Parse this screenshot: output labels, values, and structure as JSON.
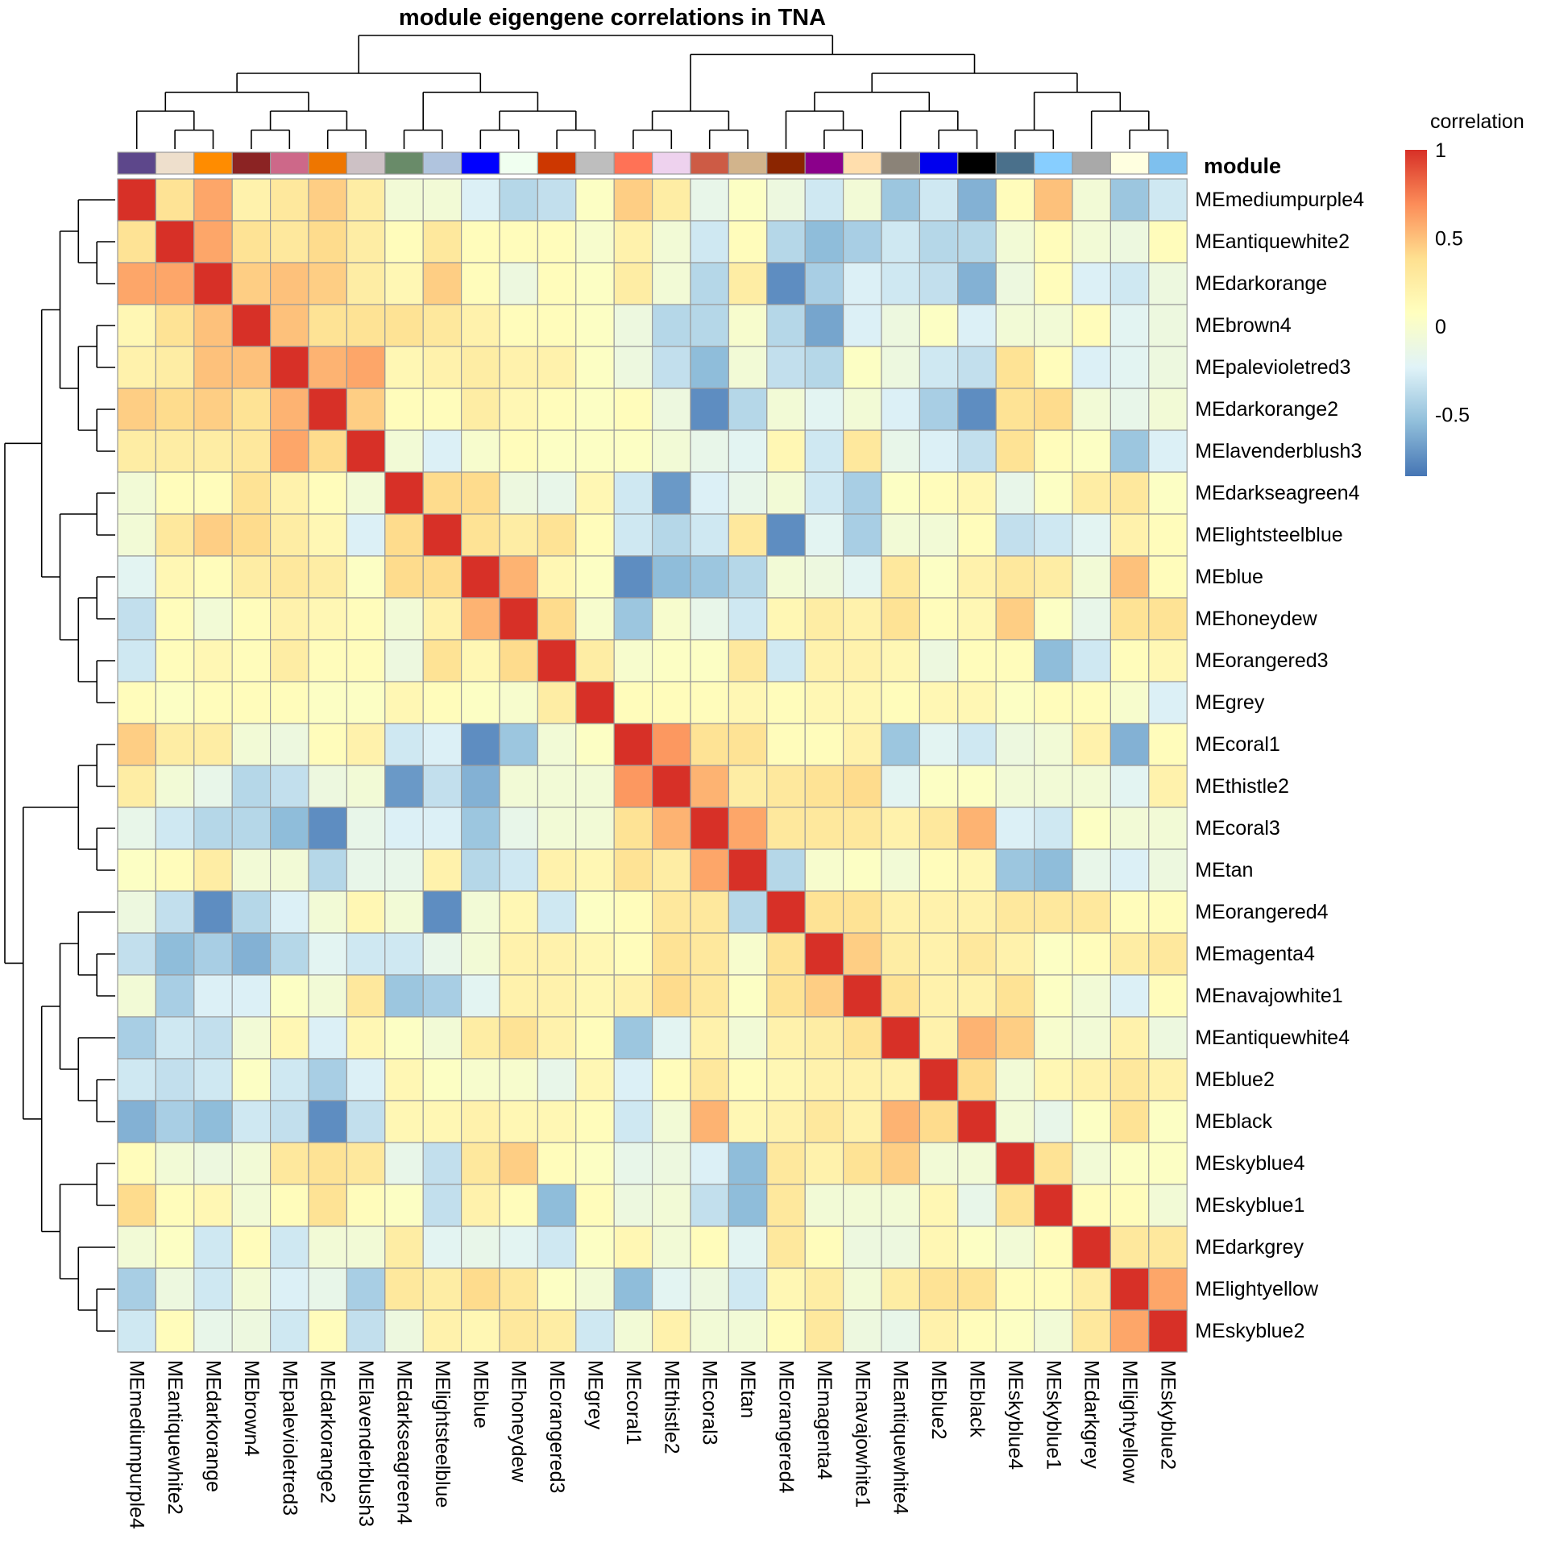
{
  "chart_data": {
    "type": "heatmap",
    "title": "module eigengene correlations in TNA",
    "rows": [
      "MEmediumpurple4",
      "MEantiquewhite2",
      "MEdarkorange",
      "MEbrown4",
      "MEpalevioletred3",
      "MEdarkorange2",
      "MElavenderblush3",
      "MEdarkseagreen4",
      "MElightsteelblue",
      "MEblue",
      "MEhoneydew",
      "MEorangered3",
      "MEgrey",
      "MEcoral1",
      "MEthistle2",
      "MEcoral3",
      "MEtan",
      "MEorangered4",
      "MEmagenta4",
      "MEnavajowhite1",
      "MEantiquewhite4",
      "MEblue2",
      "MEblack",
      "MEskyblue4",
      "MEskyblue1",
      "MEdarkgrey",
      "MElightyellow",
      "MEskyblue2"
    ],
    "columns": [
      "MEmediumpurple4",
      "MEantiquewhite2",
      "MEdarkorange",
      "MEbrown4",
      "MEpalevioletred3",
      "MEdarkorange2",
      "MElavenderblush3",
      "MEdarkseagreen4",
      "MElightsteelblue",
      "MEblue",
      "MEhoneydew",
      "MEorangered3",
      "MEgrey",
      "MEcoral1",
      "MEthistle2",
      "MEcoral3",
      "MEtan",
      "MEorangered4",
      "MEmagenta4",
      "MEnavajowhite1",
      "MEantiquewhite4",
      "MEblue2",
      "MEblack",
      "MEskyblue4",
      "MEskyblue1",
      "MEdarkgrey",
      "MElightyellow",
      "MEskyblue2"
    ],
    "values": [
      [
        1,
        0.35,
        0.6,
        0.2,
        0.3,
        0.45,
        0.25,
        -0.05,
        -0.05,
        -0.25,
        -0.4,
        -0.35,
        0.05,
        0.45,
        0.25,
        -0.15,
        0.05,
        -0.1,
        -0.3,
        -0.05,
        -0.5,
        -0.3,
        -0.6,
        0.1,
        0.5,
        -0.05,
        -0.5,
        -0.3
      ],
      [
        0.35,
        1,
        0.6,
        0.35,
        0.3,
        0.4,
        0.25,
        0.1,
        0.3,
        0.1,
        0.1,
        0.1,
        0,
        0.2,
        -0.05,
        -0.3,
        0.1,
        -0.4,
        -0.55,
        -0.45,
        -0.3,
        -0.4,
        -0.4,
        -0.05,
        0.1,
        -0.05,
        -0.1,
        0.1
      ],
      [
        0.6,
        0.6,
        1,
        0.45,
        0.5,
        0.45,
        0.25,
        0.15,
        0.45,
        0.1,
        -0.1,
        0.1,
        0.05,
        0.25,
        -0.05,
        -0.4,
        0.25,
        -0.75,
        -0.45,
        -0.25,
        -0.3,
        -0.35,
        -0.6,
        -0.1,
        0.1,
        -0.25,
        -0.3,
        -0.1
      ],
      [
        0.15,
        0.35,
        0.5,
        1,
        0.5,
        0.35,
        0.35,
        0.35,
        0.3,
        0.2,
        0.1,
        0.1,
        0.05,
        -0.1,
        -0.4,
        -0.4,
        0,
        -0.4,
        -0.65,
        -0.25,
        -0.1,
        0.05,
        -0.25,
        -0.05,
        -0.05,
        0.1,
        -0.2,
        -0.1
      ],
      [
        0.2,
        0.25,
        0.5,
        0.5,
        1,
        0.55,
        0.6,
        0.15,
        0.2,
        0.25,
        0.2,
        0.2,
        0.05,
        -0.1,
        -0.35,
        -0.55,
        -0.05,
        -0.35,
        -0.4,
        0.05,
        -0.1,
        -0.3,
        -0.35,
        0.35,
        0.1,
        -0.25,
        -0.2,
        -0.1
      ],
      [
        0.45,
        0.4,
        0.45,
        0.35,
        0.55,
        1,
        0.45,
        0.1,
        0.1,
        0.25,
        0.15,
        0.1,
        0.05,
        0.1,
        -0.1,
        -0.75,
        -0.4,
        -0.05,
        -0.2,
        -0.05,
        -0.25,
        -0.45,
        -0.75,
        0.35,
        0.4,
        -0.05,
        -0.15,
        -0.05
      ],
      [
        0.25,
        0.25,
        0.25,
        0.3,
        0.6,
        0.4,
        1,
        -0.05,
        -0.25,
        0,
        0.1,
        0.05,
        0.05,
        0.05,
        -0.05,
        -0.15,
        -0.2,
        0.15,
        -0.3,
        0.3,
        -0.15,
        -0.25,
        -0.35,
        0.35,
        0.1,
        0.05,
        -0.5,
        -0.25
      ],
      [
        -0.05,
        0.1,
        0.1,
        0.35,
        0.2,
        0.1,
        -0.05,
        1,
        0.4,
        0.4,
        -0.1,
        -0.15,
        0.15,
        -0.3,
        -0.7,
        -0.25,
        -0.15,
        -0.05,
        -0.3,
        -0.45,
        0.05,
        0.1,
        0.15,
        -0.15,
        0.05,
        0.25,
        0.3,
        0.05
      ],
      [
        -0.05,
        0.3,
        0.45,
        0.4,
        0.25,
        0.15,
        -0.25,
        0.4,
        1,
        0.35,
        0.25,
        0.35,
        0.1,
        -0.3,
        -0.4,
        -0.3,
        0.3,
        -0.75,
        -0.2,
        -0.45,
        -0.05,
        -0.05,
        0.1,
        -0.35,
        -0.3,
        -0.2,
        0.2,
        0.1
      ],
      [
        -0.2,
        0.15,
        0.1,
        0.25,
        0.3,
        0.25,
        0.05,
        0.4,
        0.4,
        1,
        0.55,
        0.15,
        0.05,
        -0.75,
        -0.55,
        -0.5,
        -0.4,
        -0.05,
        -0.1,
        -0.2,
        0.3,
        0.05,
        0.2,
        0.3,
        0.25,
        -0.05,
        0.5,
        0.1
      ],
      [
        -0.35,
        0.1,
        -0.05,
        0.1,
        0.2,
        0.15,
        0.1,
        -0.05,
        0.2,
        0.55,
        1,
        0.4,
        0,
        -0.5,
        0,
        -0.15,
        -0.3,
        0.15,
        0.25,
        0.2,
        0.35,
        0.1,
        0.15,
        0.45,
        0.05,
        -0.15,
        0.35,
        0.35
      ],
      [
        -0.3,
        0.1,
        0.15,
        0.1,
        0.25,
        0.1,
        0.1,
        -0.1,
        0.35,
        0.15,
        0.4,
        1,
        0.25,
        0,
        0.05,
        0.05,
        0.3,
        -0.3,
        0.2,
        0.2,
        0.15,
        -0.1,
        0.1,
        0.1,
        -0.55,
        -0.3,
        0.1,
        0.15
      ],
      [
        0.1,
        0.05,
        0.1,
        0.1,
        0.1,
        0.05,
        0.05,
        0.15,
        0.1,
        0.05,
        0,
        0.25,
        1,
        0.1,
        0.1,
        0.1,
        0.15,
        0.1,
        0.15,
        0.15,
        0.1,
        0.15,
        0.15,
        0.05,
        0.1,
        0.1,
        0,
        -0.25
      ],
      [
        0.45,
        0.25,
        0.25,
        -0.05,
        -0.1,
        0.1,
        0.2,
        -0.3,
        -0.25,
        -0.75,
        -0.5,
        -0.05,
        0.05,
        1,
        0.65,
        0.35,
        0.35,
        0.1,
        0.1,
        0.2,
        -0.5,
        -0.2,
        -0.3,
        -0.1,
        -0.05,
        0.2,
        -0.6,
        0.1
      ],
      [
        0.25,
        -0.05,
        -0.15,
        -0.4,
        -0.35,
        -0.1,
        -0.05,
        -0.7,
        -0.35,
        -0.6,
        -0.05,
        -0.05,
        -0.05,
        0.65,
        1,
        0.55,
        0.25,
        0.3,
        0.35,
        0.4,
        -0.2,
        0.05,
        0.05,
        -0.05,
        -0.05,
        -0.05,
        -0.2,
        0.2
      ],
      [
        -0.15,
        -0.3,
        -0.4,
        -0.4,
        -0.55,
        -0.75,
        -0.15,
        -0.25,
        -0.25,
        -0.5,
        -0.15,
        -0.05,
        -0.05,
        0.35,
        0.55,
        1,
        0.6,
        0.3,
        0.3,
        0.3,
        0.2,
        0.3,
        0.55,
        -0.25,
        -0.3,
        0.05,
        -0.05,
        -0.05
      ],
      [
        0.05,
        0.1,
        0.25,
        -0.05,
        -0.05,
        -0.4,
        -0.15,
        -0.15,
        0.2,
        -0.4,
        -0.3,
        0.2,
        0.15,
        0.35,
        0.25,
        0.6,
        1,
        -0.4,
        0,
        0.05,
        -0.05,
        0.1,
        0.15,
        -0.5,
        -0.55,
        -0.15,
        -0.25,
        -0.1
      ],
      [
        -0.1,
        -0.35,
        -0.75,
        -0.4,
        -0.25,
        -0.05,
        0.15,
        -0.05,
        -0.75,
        -0.05,
        0.15,
        -0.3,
        0.05,
        0.1,
        0.3,
        0.3,
        -0.4,
        1,
        0.35,
        0.35,
        0.2,
        0.2,
        0.2,
        0.3,
        0.3,
        0.3,
        0.1,
        0.1
      ],
      [
        -0.35,
        -0.55,
        -0.45,
        -0.6,
        -0.4,
        -0.2,
        -0.3,
        -0.3,
        -0.15,
        -0.05,
        0.2,
        0.2,
        0.15,
        0.1,
        0.35,
        0.3,
        0,
        0.35,
        1,
        0.45,
        0.25,
        0.2,
        0.3,
        0.2,
        0.05,
        0.1,
        0.25,
        0.3
      ],
      [
        -0.05,
        -0.45,
        -0.25,
        -0.25,
        0.05,
        -0.05,
        0.3,
        -0.5,
        -0.45,
        -0.2,
        0.2,
        0.2,
        0.15,
        0.2,
        0.4,
        0.3,
        0.05,
        0.35,
        0.45,
        1,
        0.35,
        0.2,
        0.2,
        0.35,
        0.05,
        -0.05,
        -0.25,
        0.1
      ],
      [
        -0.45,
        -0.3,
        -0.35,
        -0.05,
        0.15,
        -0.25,
        0.15,
        0.05,
        -0.05,
        0.25,
        0.35,
        0.2,
        0.1,
        -0.5,
        -0.2,
        0.2,
        -0.05,
        0.2,
        0.25,
        0.35,
        1,
        0.2,
        0.55,
        0.45,
        0,
        -0.05,
        0.2,
        -0.1
      ],
      [
        -0.3,
        -0.35,
        -0.3,
        0.05,
        -0.3,
        -0.45,
        -0.25,
        0.15,
        0.05,
        0,
        0,
        -0.15,
        0.15,
        -0.25,
        0.1,
        0.3,
        0.1,
        0.15,
        0.2,
        0.2,
        0.2,
        1,
        0.4,
        -0.05,
        0.15,
        0.2,
        0.3,
        0.2
      ],
      [
        -0.6,
        -0.45,
        -0.55,
        -0.3,
        -0.35,
        -0.75,
        -0.35,
        0.15,
        0.15,
        0.2,
        0.15,
        0.15,
        0.1,
        -0.3,
        -0.05,
        0.55,
        0.15,
        0.2,
        0.3,
        0.2,
        0.55,
        0.4,
        1,
        -0.05,
        -0.15,
        0.05,
        0.35,
        0.05
      ],
      [
        0.1,
        -0.05,
        -0.1,
        -0.05,
        0.3,
        0.35,
        0.3,
        -0.15,
        -0.35,
        0.3,
        0.45,
        0.1,
        0.05,
        -0.15,
        -0.1,
        -0.25,
        -0.55,
        0.3,
        0.2,
        0.35,
        0.45,
        -0.05,
        -0.05,
        1,
        0.35,
        -0.05,
        0.05,
        0.05
      ],
      [
        0.4,
        0.1,
        0.15,
        -0.05,
        0.1,
        0.35,
        0.1,
        0.05,
        -0.35,
        0.2,
        0.1,
        -0.55,
        0.1,
        -0.1,
        -0.05,
        -0.35,
        -0.55,
        0.3,
        -0.05,
        -0.05,
        -0.05,
        0.15,
        -0.15,
        0.35,
        1,
        0.1,
        0.1,
        -0.05
      ],
      [
        -0.05,
        0.05,
        -0.3,
        0.1,
        -0.3,
        -0.05,
        -0.05,
        0.25,
        -0.2,
        -0.15,
        -0.2,
        -0.3,
        0.05,
        0.15,
        -0.05,
        0.1,
        -0.2,
        0.3,
        0.1,
        -0.1,
        -0.1,
        0.15,
        0.05,
        -0.05,
        0.1,
        1,
        0.3,
        0.3
      ],
      [
        -0.45,
        -0.1,
        -0.3,
        -0.05,
        -0.25,
        -0.15,
        -0.45,
        0.3,
        0.25,
        0.4,
        0.3,
        0.05,
        -0.05,
        -0.55,
        -0.2,
        -0.1,
        -0.3,
        0.15,
        0.25,
        -0.05,
        0.25,
        0.35,
        0.35,
        0.1,
        0.1,
        0.25,
        1,
        0.6
      ],
      [
        -0.3,
        0.1,
        -0.15,
        -0.1,
        -0.3,
        0.1,
        -0.35,
        -0.1,
        0.2,
        0.15,
        0.3,
        0.25,
        -0.3,
        -0.05,
        0.2,
        -0.05,
        -0.05,
        0.1,
        0.3,
        -0.1,
        -0.15,
        0.2,
        0.1,
        0.05,
        -0.05,
        0.3,
        0.6,
        1
      ]
    ],
    "module_annotation": {
      "label": "module",
      "colors": [
        "#5D478B",
        "#EEDFCC",
        "#FF8C00",
        "#8B2323",
        "#CD6889",
        "#EE7600",
        "#CDC1C5",
        "#698B69",
        "#B0C4DE",
        "#0000FF",
        "#F0FFF0",
        "#CD3700",
        "#BEBEBE",
        "#FF7256",
        "#EED2EE",
        "#CD5B45",
        "#D2B48C",
        "#8B2500",
        "#8B008B",
        "#FFDEAD",
        "#8B8378",
        "#0000EE",
        "#000000",
        "#4A708B",
        "#87CEFF",
        "#A9A9A9",
        "#FFFFE0",
        "#7EC0EE"
      ]
    },
    "legend": {
      "title": "correlation",
      "ticks": [
        1,
        0.5,
        0,
        -0.5
      ],
      "tick_labels": [
        "1",
        "0.5",
        "0",
        "-0.5"
      ],
      "range": [
        -0.85,
        1
      ],
      "palette": [
        "#4575B4",
        "#91BFDB",
        "#E0F3F8",
        "#FFFFBF",
        "#FEE090",
        "#FC8D59",
        "#D73027"
      ]
    },
    "row_dendrogram": "((((MEmediumpurple4,(MEantiquewhite2,MEdarkorange)),((MEbrown4,MEpalevioletred3),(MEdarkorange2,MElavenderblush3))),((MEdarkseagreen4,MElightsteelblue),((MEblue,MEhoneydew),(MEorangered3,MEgrey)))),(((MEcoral1,MEthistle2),(MEcoral3,MEtan)),(((MEorangered4,(MEmagenta4,MEnavajowhite1)),(MEantiquewhite4,(MEblue2,MEblack))),((MEskyblue4,MEskyblue1),(MEdarkgrey,(MElightyellow,MEskyblue2))))))"
  }
}
